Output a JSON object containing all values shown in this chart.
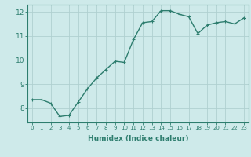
{
  "x": [
    0,
    1,
    2,
    3,
    4,
    5,
    6,
    7,
    8,
    9,
    10,
    11,
    12,
    13,
    14,
    15,
    16,
    17,
    18,
    19,
    20,
    21,
    22,
    23
  ],
  "y": [
    8.35,
    8.35,
    8.2,
    7.65,
    7.7,
    8.25,
    8.8,
    9.25,
    9.6,
    9.95,
    9.9,
    10.85,
    11.55,
    11.6,
    12.05,
    12.05,
    11.9,
    11.8,
    11.1,
    11.45,
    11.55,
    11.6,
    11.5,
    11.75
  ],
  "xlabel": "Humidex (Indice chaleur)",
  "ylim": [
    7.4,
    12.3
  ],
  "xlim": [
    -0.5,
    23.5
  ],
  "yticks": [
    8,
    9,
    10,
    11,
    12
  ],
  "xticks": [
    0,
    1,
    2,
    3,
    4,
    5,
    6,
    7,
    8,
    9,
    10,
    11,
    12,
    13,
    14,
    15,
    16,
    17,
    18,
    19,
    20,
    21,
    22,
    23
  ],
  "line_color": "#2d7d6e",
  "bg_color": "#ceeaea",
  "grid_color": "#b0d0d0",
  "tick_color": "#2d7d6e",
  "marker_size": 2.5,
  "line_width": 1.0,
  "xlabel_fontsize": 6.5,
  "xtick_fontsize": 5.0,
  "ytick_fontsize": 6.5
}
